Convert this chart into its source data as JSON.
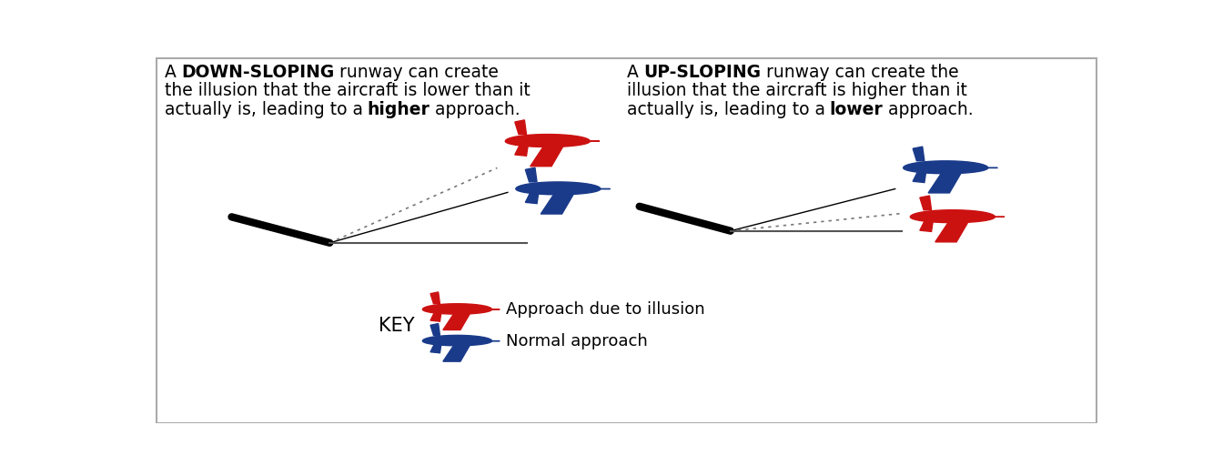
{
  "bg_color": "#ffffff",
  "border_color": "#aaaaaa",
  "left_title_line1_parts": [
    {
      "text": "A ",
      "bold": false
    },
    {
      "text": "DOWN-SLOPING",
      "bold": true
    },
    {
      "text": " runway can create",
      "bold": false
    }
  ],
  "left_title_line2": "the illusion that the aircraft is lower than it",
  "left_title_line3_parts": [
    {
      "text": "actually is, leading to a ",
      "bold": false
    },
    {
      "text": "higher",
      "bold": true
    },
    {
      "text": " approach.",
      "bold": false
    }
  ],
  "right_title_line1_parts": [
    {
      "text": "A ",
      "bold": false
    },
    {
      "text": "UP-SLOPING",
      "bold": true
    },
    {
      "text": " runway can create the",
      "bold": false
    }
  ],
  "right_title_line2": "illusion that the aircraft is higher than it",
  "right_title_line3_parts": [
    {
      "text": "actually is, leading to a ",
      "bold": false
    },
    {
      "text": "lower",
      "bold": true
    },
    {
      "text": " approach.",
      "bold": false
    }
  ],
  "key_label": "KEY",
  "key_red_label": "Approach due to illusion",
  "key_blue_label": "Normal approach",
  "red_color": "#cc1111",
  "blue_color": "#1a3a8a",
  "runway_color": "#555555",
  "thick_line_color": "#000000",
  "dotted_line_color": "#777777",
  "font_size": 13.5
}
